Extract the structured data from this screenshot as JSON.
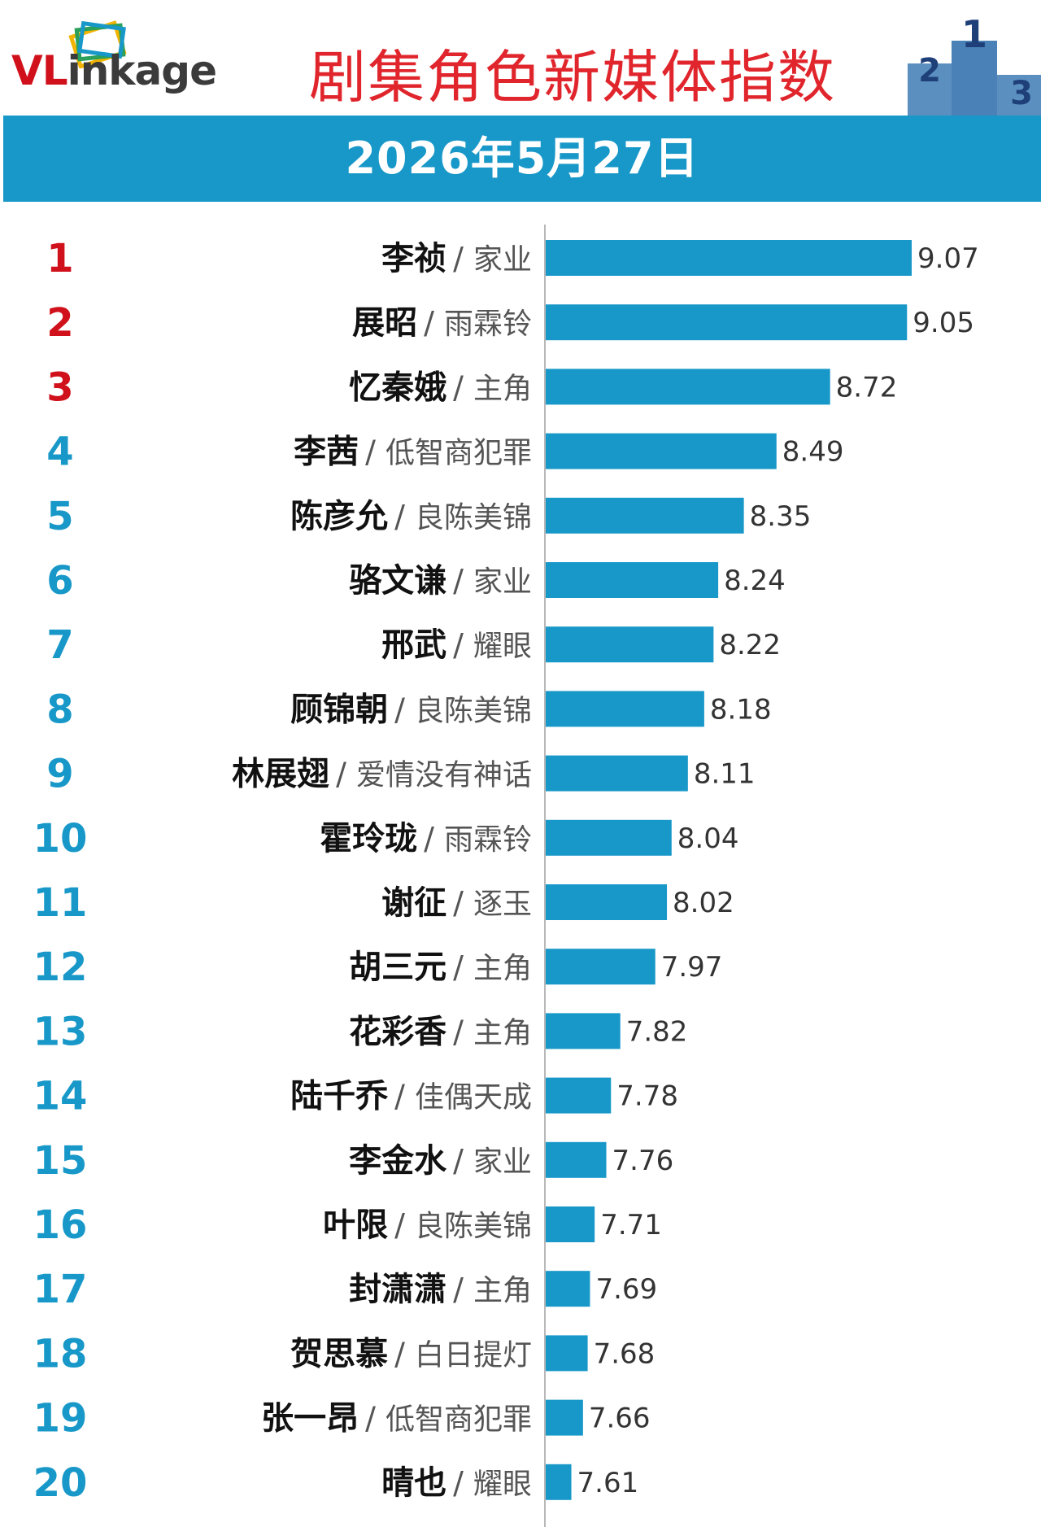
{
  "header": {
    "logo": {
      "text_v": "VL",
      "text_rest": "inkage"
    },
    "title": "剧集角色新媒体指数"
  },
  "date_bar": {
    "date": "2026年5月27日"
  },
  "colors": {
    "bar": "#1898c8",
    "rank_top": "#d0111b",
    "rank_other": "#1898c8",
    "title": "#e0262c",
    "name": "#111111",
    "show": "#555555"
  },
  "chart_data": {
    "type": "bar",
    "orientation": "horizontal",
    "title": "剧集角色新媒体指数",
    "subtitle": "2026年5月27日",
    "xlim": [
      7.5,
      9.07
    ],
    "rows": [
      {
        "rank": "1",
        "name": "李祯",
        "show": "家业",
        "value": 9.07
      },
      {
        "rank": "2",
        "name": "展昭",
        "show": "雨霖铃",
        "value": 9.05
      },
      {
        "rank": "3",
        "name": "忆秦娥",
        "show": "主角",
        "value": 8.72
      },
      {
        "rank": "4",
        "name": "李茜",
        "show": "低智商犯罪",
        "value": 8.49
      },
      {
        "rank": "5",
        "name": "陈彦允",
        "show": "良陈美锦",
        "value": 8.35
      },
      {
        "rank": "6",
        "name": "骆文谦",
        "show": "家业",
        "value": 8.24
      },
      {
        "rank": "7",
        "name": "邢武",
        "show": "耀眼",
        "value": 8.22
      },
      {
        "rank": "8",
        "name": "顾锦朝",
        "show": "良陈美锦",
        "value": 8.18
      },
      {
        "rank": "9",
        "name": "林展翅",
        "show": "爱情没有神话",
        "value": 8.11
      },
      {
        "rank": "10",
        "name": "霍玲珑",
        "show": "雨霖铃",
        "value": 8.04
      },
      {
        "rank": "11",
        "name": "谢征",
        "show": "逐玉",
        "value": 8.02
      },
      {
        "rank": "12",
        "name": "胡三元",
        "show": "主角",
        "value": 7.97
      },
      {
        "rank": "13",
        "name": "花彩香",
        "show": "主角",
        "value": 7.82
      },
      {
        "rank": "14",
        "name": "陆千乔",
        "show": "佳偶天成",
        "value": 7.78
      },
      {
        "rank": "15",
        "name": "李金水",
        "show": "家业",
        "value": 7.76
      },
      {
        "rank": "16",
        "name": "叶限",
        "show": "良陈美锦",
        "value": 7.71
      },
      {
        "rank": "17",
        "name": "封潇潇",
        "show": "主角",
        "value": 7.69
      },
      {
        "rank": "18",
        "name": "贺思慕",
        "show": "白日提灯",
        "value": 7.68
      },
      {
        "rank": "19",
        "name": "张一昂",
        "show": "低智商犯罪",
        "value": 7.66
      },
      {
        "rank": "20",
        "name": "晴也",
        "show": "耀眼",
        "value": 7.61
      }
    ]
  }
}
